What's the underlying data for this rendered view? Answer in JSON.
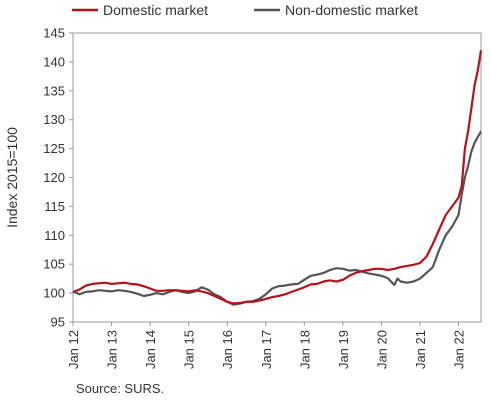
{
  "chart_data": {
    "type": "line",
    "title": "",
    "xlabel": "",
    "ylabel": "Index 2015=100",
    "source": "Source: SURS.",
    "ylim": [
      95,
      145
    ],
    "yticks": [
      95,
      100,
      105,
      110,
      115,
      120,
      125,
      130,
      135,
      140,
      145
    ],
    "x_start": "2012-01",
    "x_end": "2022-08",
    "xtick_labels": [
      "Jan 12",
      "Jan 13",
      "Jan 14",
      "Jan 15",
      "Jan 16",
      "Jan 17",
      "Jan 18",
      "Jan 19",
      "Jan 20",
      "Jan 21",
      "Jan 22"
    ],
    "grid": false,
    "legend_position": "top",
    "series": [
      {
        "name": "Domestic market",
        "color": "#b5121b",
        "points": [
          [
            "2012-01",
            100.2
          ],
          [
            "2012-03",
            100.6
          ],
          [
            "2012-05",
            101.3
          ],
          [
            "2012-07",
            101.6
          ],
          [
            "2012-09",
            101.7
          ],
          [
            "2012-11",
            101.8
          ],
          [
            "2013-01",
            101.6
          ],
          [
            "2013-03",
            101.7
          ],
          [
            "2013-05",
            101.8
          ],
          [
            "2013-07",
            101.6
          ],
          [
            "2013-09",
            101.5
          ],
          [
            "2013-11",
            101.2
          ],
          [
            "2014-01",
            100.8
          ],
          [
            "2014-03",
            100.4
          ],
          [
            "2014-05",
            100.4
          ],
          [
            "2014-07",
            100.5
          ],
          [
            "2014-09",
            100.5
          ],
          [
            "2014-11",
            100.4
          ],
          [
            "2015-01",
            100.3
          ],
          [
            "2015-03",
            100.5
          ],
          [
            "2015-05",
            100.3
          ],
          [
            "2015-07",
            100.0
          ],
          [
            "2015-09",
            99.5
          ],
          [
            "2015-11",
            99.0
          ],
          [
            "2016-01",
            98.5
          ],
          [
            "2016-03",
            98.2
          ],
          [
            "2016-05",
            98.3
          ],
          [
            "2016-07",
            98.5
          ],
          [
            "2016-09",
            98.5
          ],
          [
            "2016-11",
            98.7
          ],
          [
            "2017-01",
            99.0
          ],
          [
            "2017-03",
            99.3
          ],
          [
            "2017-05",
            99.5
          ],
          [
            "2017-07",
            99.8
          ],
          [
            "2017-09",
            100.2
          ],
          [
            "2017-11",
            100.6
          ],
          [
            "2018-01",
            101.0
          ],
          [
            "2018-03",
            101.5
          ],
          [
            "2018-05",
            101.6
          ],
          [
            "2018-07",
            102.0
          ],
          [
            "2018-09",
            102.2
          ],
          [
            "2018-11",
            102.0
          ],
          [
            "2019-01",
            102.3
          ],
          [
            "2019-03",
            103.0
          ],
          [
            "2019-05",
            103.5
          ],
          [
            "2019-07",
            103.8
          ],
          [
            "2019-09",
            104.0
          ],
          [
            "2019-11",
            104.2
          ],
          [
            "2020-01",
            104.2
          ],
          [
            "2020-03",
            104.0
          ],
          [
            "2020-05",
            104.2
          ],
          [
            "2020-07",
            104.5
          ],
          [
            "2020-09",
            104.7
          ],
          [
            "2020-11",
            104.9
          ],
          [
            "2021-01",
            105.2
          ],
          [
            "2021-03",
            106.3
          ],
          [
            "2021-05",
            108.5
          ],
          [
            "2021-07",
            111.0
          ],
          [
            "2021-09",
            113.5
          ],
          [
            "2021-11",
            115.0
          ],
          [
            "2022-01",
            116.5
          ],
          [
            "2022-02",
            118.5
          ],
          [
            "2022-03",
            125.0
          ],
          [
            "2022-04",
            128.0
          ],
          [
            "2022-05",
            132.0
          ],
          [
            "2022-06",
            136.0
          ],
          [
            "2022-07",
            138.5
          ],
          [
            "2022-08",
            142.0
          ]
        ]
      },
      {
        "name": "Non-domestic market",
        "color": "#555555",
        "points": [
          [
            "2012-01",
            100.3
          ],
          [
            "2012-03",
            99.8
          ],
          [
            "2012-05",
            100.2
          ],
          [
            "2012-07",
            100.3
          ],
          [
            "2012-09",
            100.5
          ],
          [
            "2012-11",
            100.4
          ],
          [
            "2013-01",
            100.3
          ],
          [
            "2013-03",
            100.5
          ],
          [
            "2013-05",
            100.4
          ],
          [
            "2013-07",
            100.2
          ],
          [
            "2013-09",
            99.9
          ],
          [
            "2013-11",
            99.5
          ],
          [
            "2014-01",
            99.7
          ],
          [
            "2014-03",
            100.0
          ],
          [
            "2014-05",
            99.8
          ],
          [
            "2014-07",
            100.2
          ],
          [
            "2014-09",
            100.5
          ],
          [
            "2014-11",
            100.2
          ],
          [
            "2015-01",
            100.0
          ],
          [
            "2015-03",
            100.3
          ],
          [
            "2015-05",
            101.0
          ],
          [
            "2015-07",
            100.6
          ],
          [
            "2015-09",
            99.8
          ],
          [
            "2015-11",
            99.3
          ],
          [
            "2016-01",
            98.5
          ],
          [
            "2016-03",
            98.0
          ],
          [
            "2016-05",
            98.2
          ],
          [
            "2016-07",
            98.5
          ],
          [
            "2016-09",
            98.6
          ],
          [
            "2016-11",
            99.0
          ],
          [
            "2017-01",
            99.8
          ],
          [
            "2017-03",
            100.8
          ],
          [
            "2017-05",
            101.2
          ],
          [
            "2017-07",
            101.3
          ],
          [
            "2017-09",
            101.5
          ],
          [
            "2017-11",
            101.6
          ],
          [
            "2018-01",
            102.3
          ],
          [
            "2018-03",
            103.0
          ],
          [
            "2018-05",
            103.2
          ],
          [
            "2018-07",
            103.5
          ],
          [
            "2018-09",
            104.0
          ],
          [
            "2018-11",
            104.3
          ],
          [
            "2019-01",
            104.2
          ],
          [
            "2019-03",
            103.9
          ],
          [
            "2019-05",
            104.0
          ],
          [
            "2019-07",
            103.7
          ],
          [
            "2019-09",
            103.4
          ],
          [
            "2019-11",
            103.2
          ],
          [
            "2020-01",
            103.0
          ],
          [
            "2020-03",
            102.6
          ],
          [
            "2020-05",
            101.4
          ],
          [
            "2020-06",
            102.5
          ],
          [
            "2020-07",
            102.0
          ],
          [
            "2020-09",
            101.8
          ],
          [
            "2020-11",
            102.0
          ],
          [
            "2021-01",
            102.5
          ],
          [
            "2021-03",
            103.5
          ],
          [
            "2021-05",
            104.5
          ],
          [
            "2021-07",
            107.5
          ],
          [
            "2021-09",
            110.0
          ],
          [
            "2021-11",
            111.5
          ],
          [
            "2022-01",
            113.5
          ],
          [
            "2022-02",
            117.0
          ],
          [
            "2022-03",
            120.0
          ],
          [
            "2022-04",
            122.0
          ],
          [
            "2022-05",
            124.5
          ],
          [
            "2022-06",
            126.0
          ],
          [
            "2022-07",
            127.0
          ],
          [
            "2022-08",
            128.0
          ]
        ]
      }
    ]
  }
}
